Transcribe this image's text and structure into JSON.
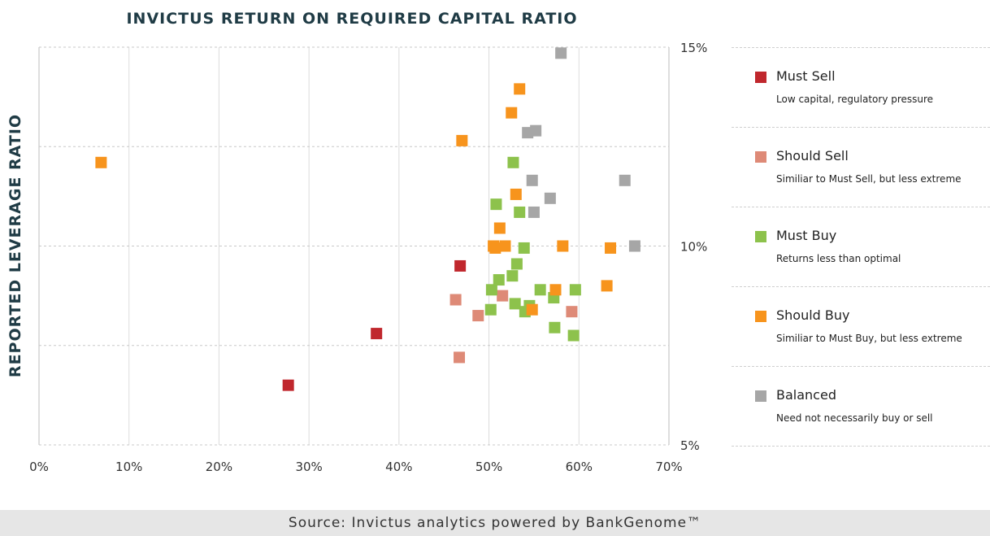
{
  "chart_data": {
    "type": "scatter",
    "title": "INVICTUS RETURN ON REQUIRED CAPITAL RATIO",
    "ylabel": "REPORTED LEVERAGE RATIO",
    "xlabel": "",
    "xlim": [
      0,
      0.7
    ],
    "ylim": [
      0.05,
      0.15
    ],
    "x_ticks": [
      0,
      0.1,
      0.2,
      0.3,
      0.4,
      0.5,
      0.6,
      0.7
    ],
    "x_tick_labels": [
      "0%",
      "10%",
      "20%",
      "30%",
      "40%",
      "50%",
      "60%",
      "70%"
    ],
    "y_ticks": [
      0.05,
      0.1,
      0.15
    ],
    "y_tick_labels": [
      "5%",
      "10%",
      "15%"
    ],
    "y_gridlines": [
      0.05,
      0.075,
      0.1,
      0.125,
      0.15
    ],
    "y_axis_side": "right",
    "grid": true,
    "legend_position": "right",
    "series": [
      {
        "name": "Must Sell",
        "color": "#c0272d",
        "points": [
          [
            0.277,
            0.065
          ],
          [
            0.375,
            0.078
          ],
          [
            0.468,
            0.095
          ]
        ]
      },
      {
        "name": "Should Sell",
        "color": "#de8a77",
        "points": [
          [
            0.463,
            0.0865
          ],
          [
            0.467,
            0.072
          ],
          [
            0.488,
            0.0825
          ],
          [
            0.515,
            0.0875
          ],
          [
            0.592,
            0.0835
          ]
        ]
      },
      {
        "name": "Must Buy",
        "color": "#8dc24c",
        "points": [
          [
            0.502,
            0.084
          ],
          [
            0.503,
            0.089
          ],
          [
            0.508,
            0.1105
          ],
          [
            0.511,
            0.0915
          ],
          [
            0.526,
            0.0925
          ],
          [
            0.527,
            0.121
          ],
          [
            0.529,
            0.0855
          ],
          [
            0.531,
            0.0955
          ],
          [
            0.534,
            0.1085
          ],
          [
            0.539,
            0.0995
          ],
          [
            0.54,
            0.0835
          ],
          [
            0.545,
            0.085
          ],
          [
            0.557,
            0.089
          ],
          [
            0.572,
            0.087
          ],
          [
            0.573,
            0.0795
          ],
          [
            0.594,
            0.0775
          ],
          [
            0.596,
            0.089
          ]
        ]
      },
      {
        "name": "Should Buy",
        "color": "#f7941d",
        "points": [
          [
            0.069,
            0.121
          ],
          [
            0.47,
            0.1265
          ],
          [
            0.505,
            0.1
          ],
          [
            0.507,
            0.0995
          ],
          [
            0.512,
            0.1045
          ],
          [
            0.518,
            0.1
          ],
          [
            0.525,
            0.1335
          ],
          [
            0.53,
            0.113
          ],
          [
            0.534,
            0.1395
          ],
          [
            0.548,
            0.084
          ],
          [
            0.574,
            0.089
          ],
          [
            0.582,
            0.1
          ],
          [
            0.631,
            0.09
          ],
          [
            0.635,
            0.0995
          ]
        ]
      },
      {
        "name": "Balanced",
        "color": "#a6a6a6",
        "points": [
          [
            0.543,
            0.1285
          ],
          [
            0.548,
            0.1165
          ],
          [
            0.55,
            0.1085
          ],
          [
            0.552,
            0.129
          ],
          [
            0.568,
            0.112
          ],
          [
            0.58,
            0.1485
          ],
          [
            0.651,
            0.1165
          ],
          [
            0.662,
            0.1
          ]
        ]
      }
    ]
  },
  "legend": {
    "items": [
      {
        "name": "Must Sell",
        "desc": "Low capital, regulatory pressure",
        "color": "#c0272d"
      },
      {
        "name": "Should Sell",
        "desc": "Similiar to Must Sell, but less extreme",
        "color": "#de8a77"
      },
      {
        "name": "Must Buy",
        "desc": "Returns less than optimal",
        "color": "#8dc24c"
      },
      {
        "name": "Should Buy",
        "desc": "Similiar to Must Buy, but less extreme",
        "color": "#f7941d"
      },
      {
        "name": "Balanced",
        "desc": "Need not necessarily buy or sell",
        "color": "#a6a6a6"
      }
    ]
  },
  "footer": {
    "source": "Source: Invictus analytics powered by BankGenome™"
  }
}
